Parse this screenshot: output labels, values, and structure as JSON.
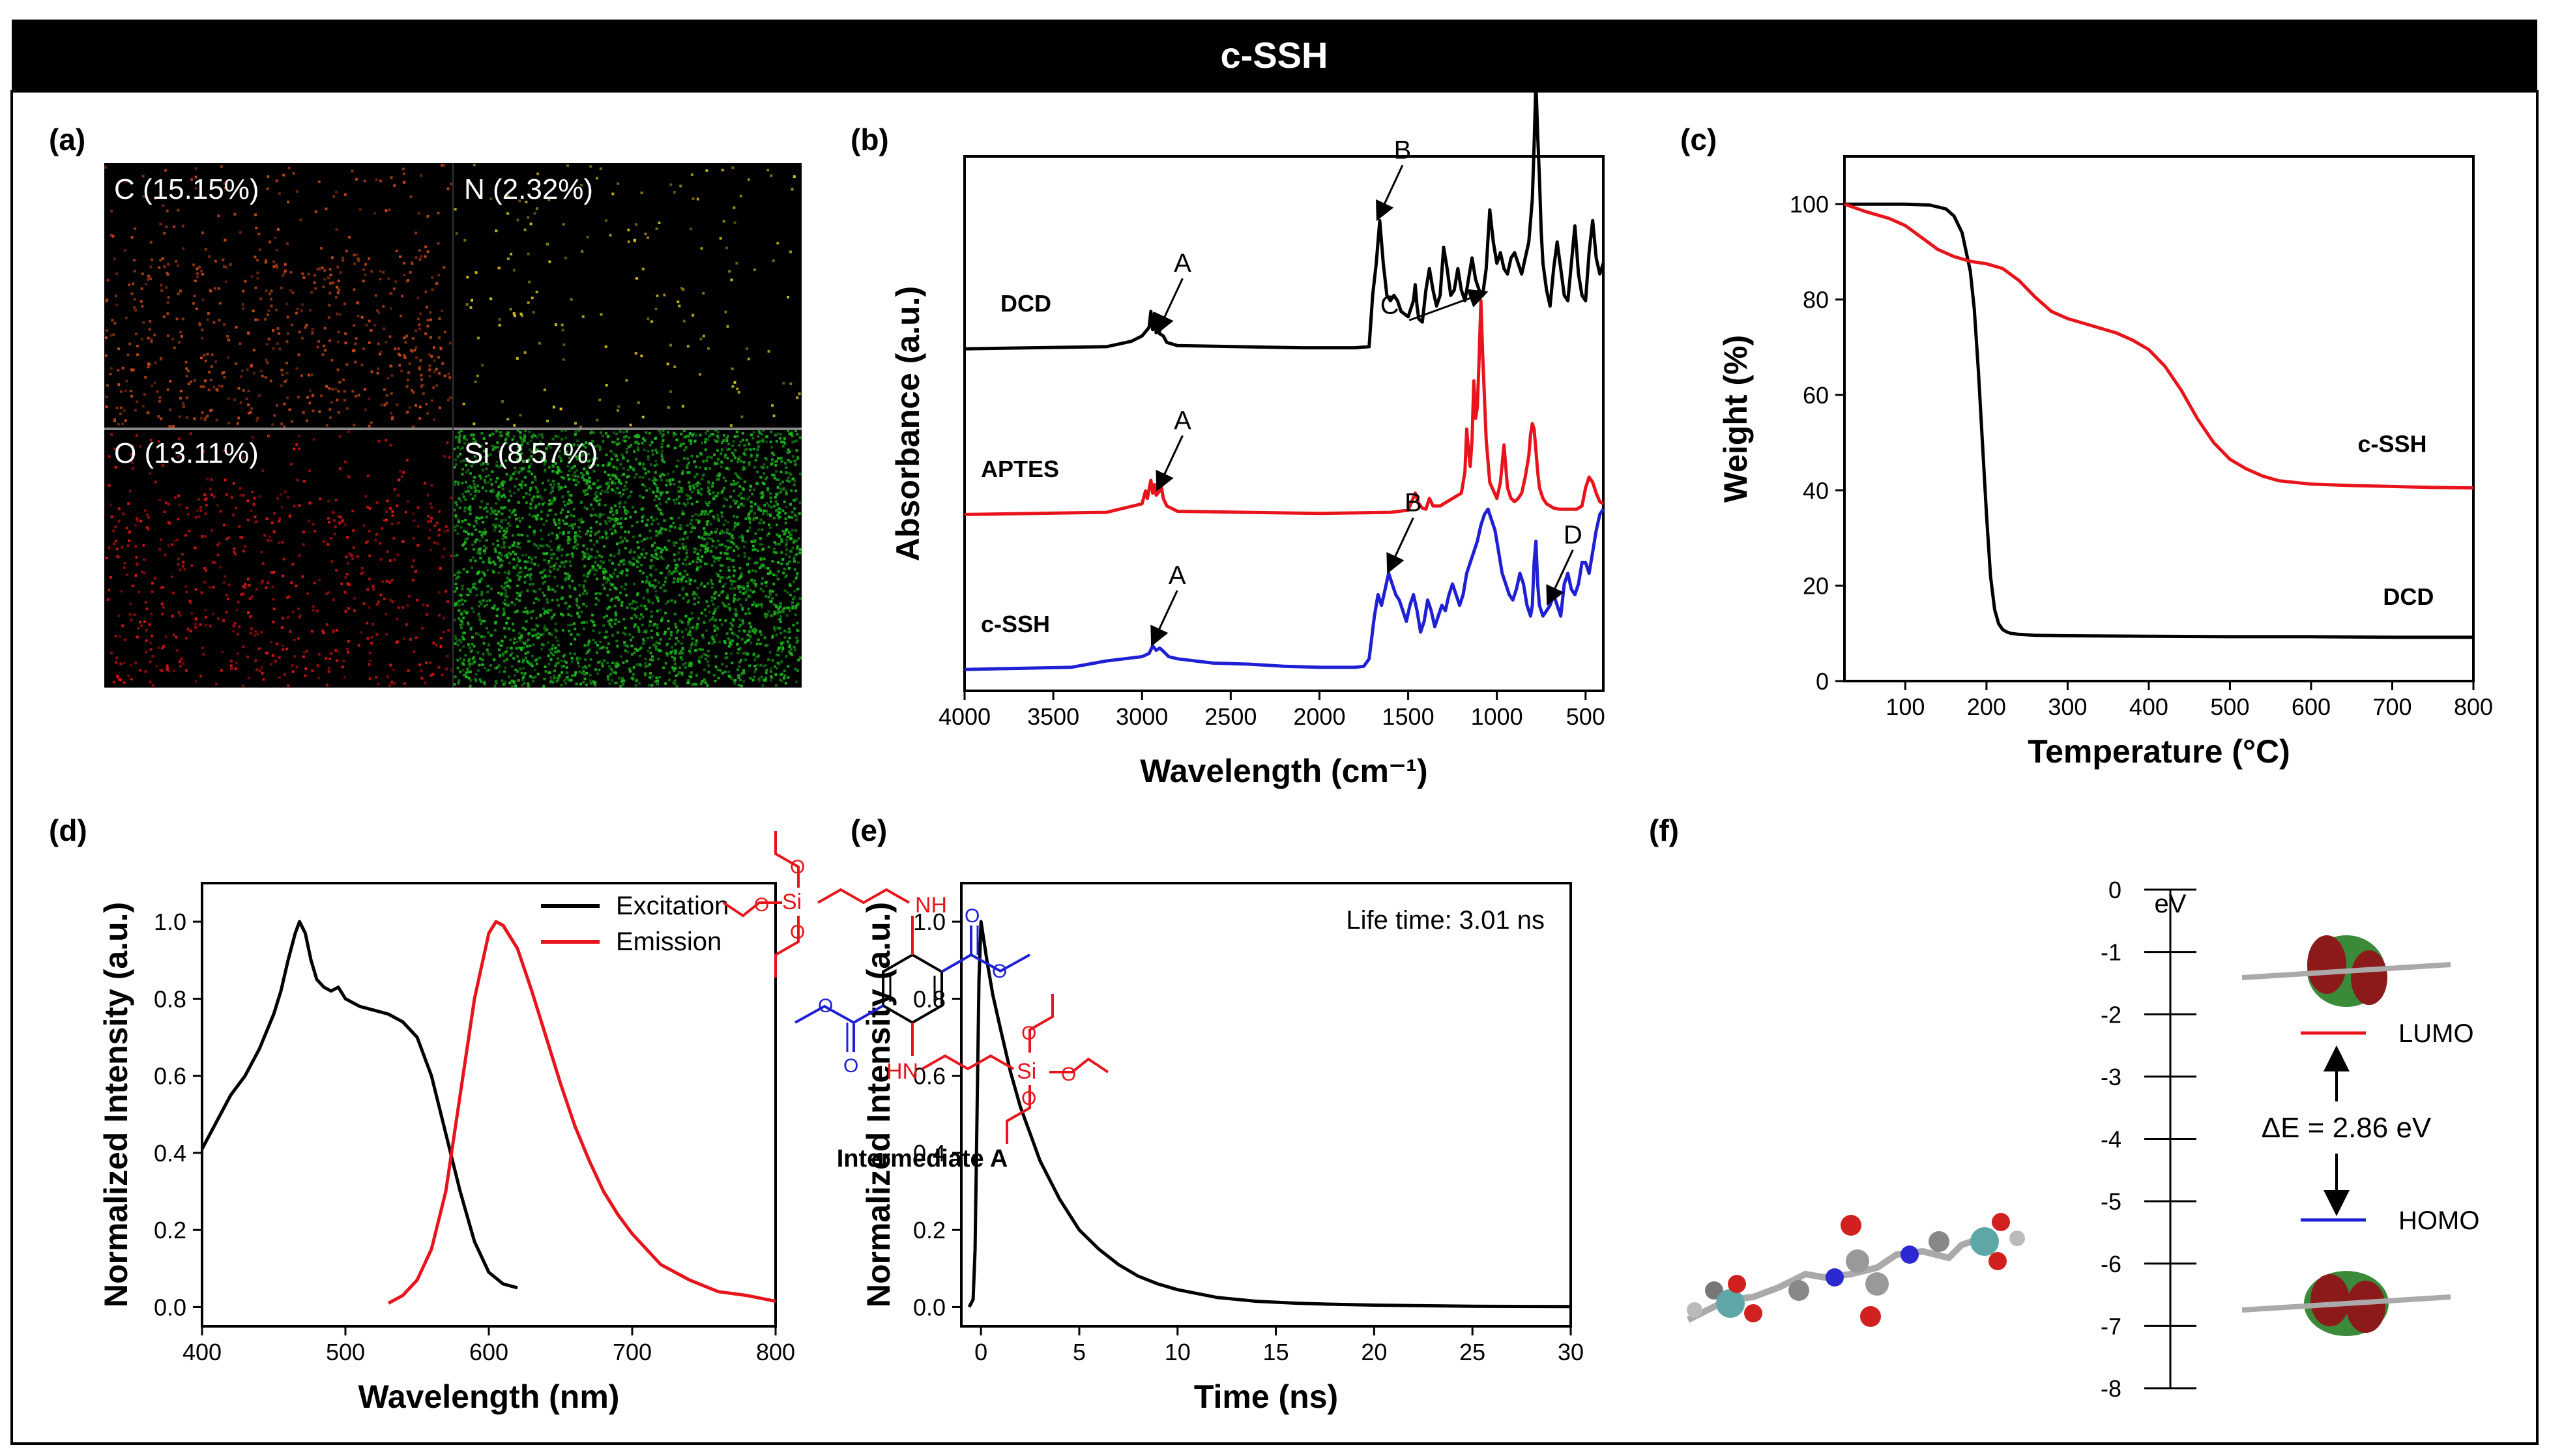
{
  "figure_title": "c-SSH",
  "colors": {
    "black": "#000000",
    "red": "#e8141c",
    "blue": "#1f1fd4",
    "green": "#1db81d",
    "orange": "#c84818"
  },
  "panel_labels": [
    "(a)",
    "(b)",
    "(c)",
    "(d)",
    "(e)",
    "(f)"
  ],
  "panel_a": {
    "type": "elemental mapping",
    "maps": [
      {
        "label": "C (15.15%)",
        "color": "#c84818"
      },
      {
        "label": "N (2.32%)",
        "color": "#d6c21a"
      },
      {
        "label": "O (13.11%)",
        "color": "#e01515"
      },
      {
        "label": "Si (8.57%)",
        "color": "#1db81d"
      }
    ]
  },
  "panel_f": {
    "molecule_label": "Intermediate A",
    "atoms": {
      "si1": "Si",
      "si2": "Si",
      "nh1": "NH",
      "nh2": "HN",
      "o": "O"
    },
    "energy_axis": {
      "unit": "eV",
      "ticks": [
        0,
        -1,
        -2,
        -3,
        -4,
        -5,
        -6,
        -7,
        -8
      ]
    },
    "lumo_label": "LUMO",
    "lumo_value": -2.3,
    "homo_label": "HOMO",
    "homo_value": -5.3,
    "gap_text": "ΔE = 2.86 eV"
  },
  "chart_data": [
    {
      "id": "b",
      "type": "line",
      "xlabel": "Wavelength (cm⁻¹)",
      "ylabel": "Absorbance (a.u.)",
      "xlim": [
        4000,
        400
      ],
      "xticks": [
        4000,
        3500,
        3000,
        2500,
        2000,
        1500,
        1000,
        500
      ],
      "series": [
        {
          "name": "DCD",
          "color": "#000000",
          "offset": 2.0,
          "x": [
            4000,
            3200,
            3060,
            3000,
            2960,
            2950,
            2940,
            2930,
            2920,
            2910,
            2900,
            2880,
            2860,
            2800,
            2100,
            1800,
            1720,
            1700,
            1680,
            1660,
            1640,
            1620,
            1600,
            1580,
            1560,
            1540,
            1500,
            1470,
            1460,
            1450,
            1440,
            1420,
            1400,
            1380,
            1360,
            1340,
            1320,
            1300,
            1280,
            1260,
            1240,
            1220,
            1200,
            1180,
            1160,
            1140,
            1120,
            1100,
            1080,
            1060,
            1040,
            1020,
            1000,
            980,
            960,
            940,
            920,
            900,
            880,
            860,
            840,
            820,
            800,
            790,
            780,
            770,
            760,
            750,
            740,
            720,
            700,
            680,
            660,
            640,
            620,
            600,
            580,
            560,
            540,
            520,
            500,
            480,
            460,
            440,
            420,
            400
          ],
          "y": [
            0,
            0.02,
            0.07,
            0.12,
            0.2,
            0.35,
            0.18,
            0.33,
            0.15,
            0.3,
            0.14,
            0.12,
            0.06,
            0.03,
            0.01,
            0.01,
            0.02,
            0.5,
            0.8,
            1.2,
            0.8,
            0.5,
            0.45,
            0.5,
            0.45,
            0.35,
            0.3,
            0.45,
            0.6,
            0.4,
            0.28,
            0.25,
            0.55,
            0.75,
            0.55,
            0.4,
            0.5,
            0.95,
            0.75,
            0.5,
            0.55,
            0.75,
            0.55,
            0.45,
            0.65,
            0.85,
            0.65,
            0.55,
            0.5,
            0.75,
            1.3,
            1.0,
            0.8,
            0.9,
            0.75,
            0.7,
            0.85,
            0.9,
            0.8,
            0.7,
            0.85,
            1.0,
            1.4,
            1.9,
            2.5,
            2.0,
            1.6,
            1.1,
            0.8,
            0.55,
            0.4,
            0.75,
            1.0,
            0.75,
            0.5,
            0.45,
            0.8,
            1.15,
            0.7,
            0.5,
            0.45,
            0.9,
            1.2,
            0.85,
            0.7,
            0.8
          ]
        },
        {
          "name": "APTES",
          "color": "#e8141c",
          "offset": 1.0,
          "x": [
            4000,
            3200,
            3000,
            2980,
            2970,
            2950,
            2940,
            2930,
            2920,
            2900,
            2890,
            2880,
            2860,
            2800,
            2000,
            1600,
            1500,
            1480,
            1460,
            1440,
            1420,
            1400,
            1380,
            1360,
            1320,
            1250,
            1200,
            1180,
            1170,
            1160,
            1150,
            1140,
            1130,
            1120,
            1110,
            1100,
            1090,
            1080,
            1070,
            1060,
            1040,
            1000,
            980,
            960,
            950,
            940,
            920,
            900,
            880,
            860,
            840,
            820,
            810,
            800,
            790,
            780,
            770,
            760,
            740,
            720,
            700,
            680,
            650,
            600,
            550,
            520,
            500,
            480,
            460,
            440,
            420,
            400
          ],
          "y": [
            0,
            0.02,
            0.1,
            0.22,
            0.15,
            0.32,
            0.2,
            0.28,
            0.18,
            0.22,
            0.25,
            0.15,
            0.08,
            0.03,
            0.01,
            0.02,
            0.04,
            0.12,
            0.2,
            0.1,
            0.06,
            0.05,
            0.15,
            0.08,
            0.08,
            0.15,
            0.2,
            0.4,
            0.8,
            0.6,
            0.45,
            0.7,
            1.25,
            0.9,
            1.0,
            1.45,
            2.0,
            1.5,
            1.1,
            0.7,
            0.3,
            0.15,
            0.3,
            0.65,
            0.45,
            0.25,
            0.15,
            0.12,
            0.15,
            0.2,
            0.35,
            0.55,
            0.75,
            0.85,
            0.8,
            0.6,
            0.4,
            0.25,
            0.15,
            0.1,
            0.08,
            0.06,
            0.05,
            0.05,
            0.05,
            0.08,
            0.25,
            0.35,
            0.3,
            0.2,
            0.12,
            0.1
          ]
        },
        {
          "name": "c-SSH",
          "color": "#1f1fd4",
          "offset": 0.0,
          "x": [
            4000,
            3400,
            3300,
            3200,
            3100,
            3000,
            2960,
            2940,
            2920,
            2900,
            2880,
            2850,
            2800,
            2600,
            2400,
            2200,
            2000,
            1800,
            1750,
            1720,
            1690,
            1670,
            1650,
            1630,
            1610,
            1590,
            1570,
            1550,
            1530,
            1510,
            1490,
            1470,
            1450,
            1430,
            1410,
            1390,
            1370,
            1350,
            1330,
            1310,
            1290,
            1270,
            1250,
            1230,
            1210,
            1190,
            1170,
            1150,
            1130,
            1110,
            1090,
            1070,
            1050,
            1030,
            1010,
            990,
            970,
            950,
            930,
            910,
            890,
            870,
            850,
            830,
            810,
            800,
            790,
            780,
            770,
            760,
            740,
            720,
            700,
            680,
            660,
            640,
            620,
            600,
            580,
            560,
            540,
            520,
            500,
            480,
            460,
            440,
            420,
            400
          ],
          "y": [
            0,
            0.02,
            0.05,
            0.08,
            0.1,
            0.12,
            0.15,
            0.22,
            0.18,
            0.2,
            0.17,
            0.12,
            0.1,
            0.06,
            0.05,
            0.03,
            0.02,
            0.02,
            0.03,
            0.1,
            0.5,
            0.7,
            0.6,
            0.75,
            0.9,
            0.8,
            0.7,
            0.65,
            0.55,
            0.45,
            0.6,
            0.7,
            0.55,
            0.35,
            0.45,
            0.65,
            0.55,
            0.4,
            0.5,
            0.6,
            0.55,
            0.7,
            0.8,
            0.7,
            0.6,
            0.7,
            0.9,
            1.0,
            1.1,
            1.2,
            1.35,
            1.45,
            1.5,
            1.4,
            1.3,
            1.1,
            0.9,
            0.8,
            0.7,
            0.65,
            0.75,
            0.9,
            0.8,
            0.6,
            0.5,
            0.6,
            1.0,
            1.2,
            0.8,
            0.6,
            0.5,
            0.55,
            0.6,
            0.7,
            0.6,
            0.5,
            0.8,
            0.9,
            0.75,
            0.7,
            0.8,
            1.0,
            1.0,
            0.9,
            1.1,
            1.3,
            1.45,
            1.5
          ]
        }
      ],
      "annotations": [
        {
          "text": "A",
          "series": "DCD",
          "x": 2900
        },
        {
          "text": "B",
          "series": "DCD",
          "x": 1660
        },
        {
          "text": "A",
          "series": "APTES",
          "x": 2900
        },
        {
          "text": "C",
          "series": "APTES",
          "x": 1090
        },
        {
          "text": "A",
          "series": "c-SSH",
          "x": 2930
        },
        {
          "text": "B",
          "series": "c-SSH",
          "x": 1600
        },
        {
          "text": "D",
          "series": "c-SSH",
          "x": 700
        }
      ]
    },
    {
      "id": "c",
      "type": "line",
      "xlabel": "Temperature (°C)",
      "ylabel": "Weight (%)",
      "xlim": [
        25,
        800
      ],
      "ylim": [
        0,
        110
      ],
      "xticks": [
        100,
        200,
        300,
        400,
        500,
        600,
        700,
        800
      ],
      "yticks": [
        0,
        20,
        40,
        60,
        80,
        100
      ],
      "series": [
        {
          "name": "DCD",
          "color": "#000000",
          "x": [
            25,
            100,
            130,
            150,
            160,
            170,
            180,
            185,
            190,
            195,
            200,
            205,
            210,
            215,
            220,
            225,
            230,
            240,
            260,
            300,
            400,
            500,
            600,
            700,
            800
          ],
          "y": [
            100,
            100,
            99.8,
            99,
            97.5,
            94,
            86,
            78,
            65,
            50,
            35,
            22,
            15,
            12,
            10.8,
            10.3,
            10,
            9.8,
            9.6,
            9.5,
            9.4,
            9.3,
            9.3,
            9.2,
            9.2
          ]
        },
        {
          "name": "c-SSH",
          "color": "#e8141c",
          "x": [
            25,
            50,
            80,
            100,
            120,
            140,
            160,
            180,
            200,
            220,
            240,
            260,
            280,
            300,
            320,
            340,
            360,
            380,
            400,
            420,
            440,
            460,
            480,
            500,
            520,
            540,
            560,
            600,
            650,
            700,
            750,
            800
          ],
          "y": [
            100,
            98.5,
            97,
            95.5,
            93,
            90.5,
            89,
            88,
            87.5,
            86.5,
            84,
            80.5,
            77.5,
            76,
            75,
            74,
            73,
            71.5,
            69.5,
            66,
            61,
            55,
            50,
            46.5,
            44.5,
            43,
            42,
            41.3,
            41,
            40.8,
            40.6,
            40.5
          ]
        }
      ],
      "series_labels": [
        "c-SSH",
        "DCD"
      ]
    },
    {
      "id": "d",
      "type": "line",
      "xlabel": "Wavelength (nm)",
      "ylabel": "Normalized Intensity (a.u.)",
      "xlim": [
        400,
        800
      ],
      "ylim": [
        -0.05,
        1.1
      ],
      "xticks": [
        400,
        500,
        600,
        700,
        800
      ],
      "yticks": [
        0.0,
        0.2,
        0.4,
        0.6,
        0.8,
        1.0
      ],
      "legend": [
        "Excitation",
        "Emission"
      ],
      "series": [
        {
          "name": "Excitation",
          "color": "#000000",
          "x": [
            400,
            410,
            420,
            430,
            440,
            450,
            455,
            460,
            465,
            468,
            472,
            476,
            480,
            485,
            490,
            495,
            500,
            510,
            520,
            530,
            540,
            550,
            560,
            570,
            580,
            590,
            600,
            610,
            620
          ],
          "y": [
            0.41,
            0.48,
            0.55,
            0.6,
            0.67,
            0.76,
            0.82,
            0.9,
            0.97,
            1.0,
            0.97,
            0.9,
            0.85,
            0.83,
            0.82,
            0.83,
            0.8,
            0.78,
            0.77,
            0.76,
            0.74,
            0.7,
            0.6,
            0.45,
            0.3,
            0.17,
            0.09,
            0.06,
            0.05
          ]
        },
        {
          "name": "Emission",
          "color": "#e8141c",
          "x": [
            530,
            540,
            550,
            560,
            570,
            580,
            590,
            600,
            605,
            610,
            620,
            630,
            640,
            650,
            660,
            670,
            680,
            690,
            700,
            720,
            740,
            760,
            780,
            800
          ],
          "y": [
            0.01,
            0.03,
            0.07,
            0.15,
            0.3,
            0.55,
            0.8,
            0.97,
            1.0,
            0.99,
            0.93,
            0.82,
            0.7,
            0.58,
            0.47,
            0.38,
            0.3,
            0.24,
            0.19,
            0.11,
            0.07,
            0.04,
            0.03,
            0.015
          ]
        }
      ]
    },
    {
      "id": "e",
      "type": "line",
      "xlabel": "Time (ns)",
      "ylabel": "Normalized Intensity (a.u.)",
      "xlim": [
        -1,
        30
      ],
      "ylim": [
        -0.05,
        1.1
      ],
      "xticks": [
        0,
        5,
        10,
        15,
        20,
        25,
        30
      ],
      "yticks": [
        0.0,
        0.2,
        0.4,
        0.6,
        0.8,
        1.0
      ],
      "annotation": "Life time: 3.01 ns",
      "series": [
        {
          "name": "Decay",
          "color": "#000000",
          "x": [
            -0.6,
            -0.4,
            -0.3,
            -0.2,
            -0.1,
            0,
            0.3,
            0.6,
            1,
            1.5,
            2,
            2.5,
            3,
            4,
            5,
            6,
            7,
            8,
            9,
            10,
            12,
            14,
            16,
            18,
            20,
            25,
            30
          ],
          "y": [
            0,
            0.02,
            0.15,
            0.5,
            0.85,
            1.0,
            0.9,
            0.81,
            0.72,
            0.61,
            0.52,
            0.45,
            0.38,
            0.28,
            0.2,
            0.15,
            0.11,
            0.08,
            0.06,
            0.045,
            0.025,
            0.015,
            0.01,
            0.007,
            0.005,
            0.002,
            0.001
          ]
        }
      ]
    }
  ]
}
